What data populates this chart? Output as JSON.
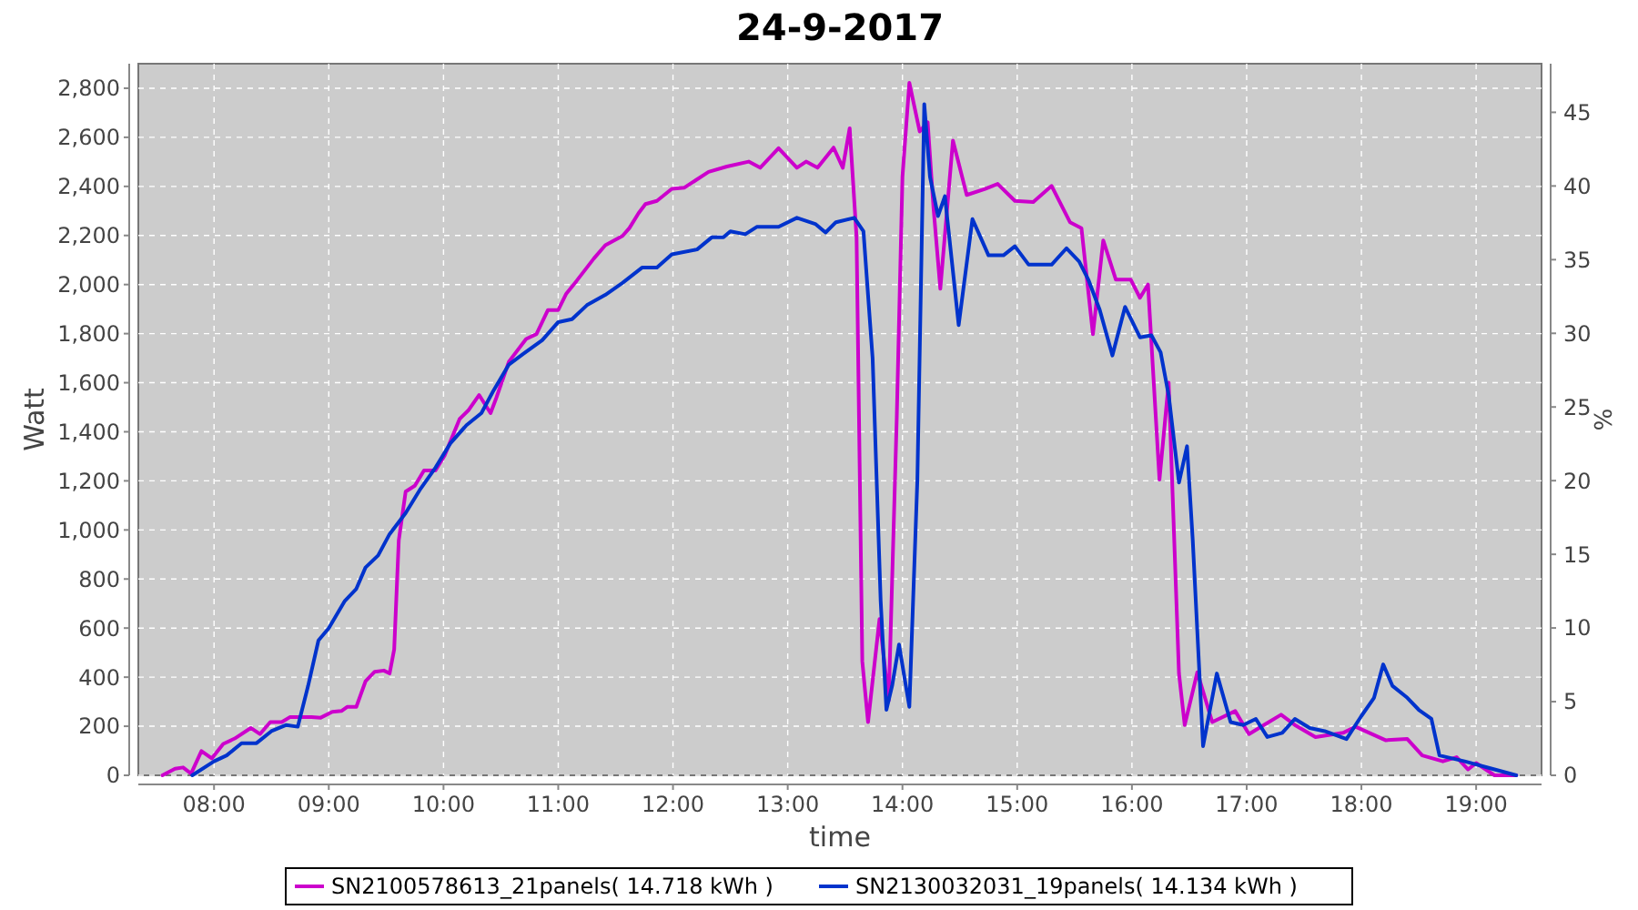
{
  "chart_data": {
    "type": "line",
    "title": "24-9-2017",
    "xlabel": "time",
    "ylabel": "Watt",
    "y2label": "%",
    "xlim": [
      7.34,
      19.57
    ],
    "xticks": [
      {
        "value": 8,
        "label": "08:00"
      },
      {
        "value": 9,
        "label": "09:00"
      },
      {
        "value": 10,
        "label": "10:00"
      },
      {
        "value": 11,
        "label": "11:00"
      },
      {
        "value": 12,
        "label": "12:00"
      },
      {
        "value": 13,
        "label": "13:00"
      },
      {
        "value": 14,
        "label": "14:00"
      },
      {
        "value": 15,
        "label": "15:00"
      },
      {
        "value": 16,
        "label": "16:00"
      },
      {
        "value": 17,
        "label": "17:00"
      },
      {
        "value": 18,
        "label": "18:00"
      },
      {
        "value": 19,
        "label": "19:00"
      }
    ],
    "ylim": [
      0,
      2900
    ],
    "yticks": [
      {
        "value": 0,
        "label": "0"
      },
      {
        "value": 200,
        "label": "200"
      },
      {
        "value": 400,
        "label": "400"
      },
      {
        "value": 600,
        "label": "600"
      },
      {
        "value": 800,
        "label": "800"
      },
      {
        "value": 1000,
        "label": "1,000"
      },
      {
        "value": 1200,
        "label": "1,200"
      },
      {
        "value": 1400,
        "label": "1,400"
      },
      {
        "value": 1600,
        "label": "1,600"
      },
      {
        "value": 1800,
        "label": "1,800"
      },
      {
        "value": 2000,
        "label": "2,000"
      },
      {
        "value": 2200,
        "label": "2,200"
      },
      {
        "value": 2400,
        "label": "2,400"
      },
      {
        "value": 2600,
        "label": "2,600"
      },
      {
        "value": 2800,
        "label": "2,800"
      }
    ],
    "y2lim": [
      0,
      48.3
    ],
    "y2ticks": [
      0,
      5,
      10,
      15,
      20,
      25,
      30,
      35,
      40,
      45
    ],
    "grid": true,
    "legend": "bottom",
    "marker": "none",
    "line_style": "solid",
    "series": [
      {
        "name": "SN2100578613_21panels( 14.718 kWh )",
        "color": "#cc00cc",
        "x": [
          7.55,
          7.66,
          7.73,
          7.8,
          7.89,
          7.98,
          8.08,
          8.18,
          8.32,
          8.4,
          8.49,
          8.59,
          8.66,
          8.85,
          8.93,
          9.03,
          9.11,
          9.16,
          9.24,
          9.32,
          9.4,
          9.48,
          9.53,
          9.57,
          9.61,
          9.67,
          9.75,
          9.83,
          9.93,
          10.01,
          10.14,
          10.22,
          10.31,
          10.41,
          10.46,
          10.57,
          10.72,
          10.81,
          10.91,
          11,
          11.07,
          11.16,
          11.31,
          11.41,
          11.56,
          11.62,
          11.7,
          11.76,
          11.86,
          11.99,
          12.1,
          12.31,
          12.47,
          12.66,
          12.76,
          12.92,
          13.08,
          13.16,
          13.26,
          13.4,
          13.48,
          13.54,
          13.6,
          13.65,
          13.7,
          13.8,
          13.88,
          13.95,
          14,
          14.06,
          14.15,
          14.22,
          14.27,
          14.33,
          14.44,
          14.56,
          14.72,
          14.83,
          14.98,
          15.14,
          15.3,
          15.46,
          15.56,
          15.66,
          15.75,
          15.86,
          15.99,
          16.07,
          16.14,
          16.24,
          16.32,
          16.41,
          16.46,
          16.57,
          16.7,
          16.9,
          17.02,
          17.15,
          17.3,
          17.42,
          17.6,
          17.84,
          17.95,
          18.21,
          18.4,
          18.53,
          18.71,
          18.83,
          18.93,
          19,
          19.16,
          19.35
        ],
        "values": [
          0,
          27,
          32,
          7,
          99,
          69,
          128,
          150,
          193,
          168,
          217,
          217,
          237,
          237,
          235,
          259,
          262,
          279,
          279,
          383,
          422,
          427,
          415,
          513,
          958,
          1156,
          1180,
          1242,
          1242,
          1304,
          1452,
          1489,
          1550,
          1476,
          1538,
          1686,
          1778,
          1798,
          1896,
          1896,
          1963,
          2015,
          2106,
          2160,
          2198,
          2230,
          2291,
          2328,
          2341,
          2390,
          2395,
          2459,
          2481,
          2501,
          2476,
          2556,
          2476,
          2501,
          2476,
          2558,
          2476,
          2637,
          2193,
          464,
          217,
          637,
          304,
          1452,
          2439,
          2822,
          2624,
          2661,
          2316,
          1983,
          2587,
          2365,
          2390,
          2410,
          2341,
          2336,
          2402,
          2254,
          2230,
          1798,
          2180,
          2020,
          2020,
          1946,
          2000,
          1205,
          1600,
          415,
          205,
          420,
          217,
          262,
          168,
          205,
          247,
          205,
          156,
          173,
          198,
          143,
          148,
          81,
          57,
          74,
          24,
          50,
          0,
          0
        ]
      },
      {
        "name": "SN2130032031_19panels( 14.134 kWh )",
        "color": "#0033cc",
        "x": [
          7.81,
          8,
          8.11,
          8.24,
          8.37,
          8.5,
          8.63,
          8.73,
          8.82,
          8.91,
          9,
          9.14,
          9.24,
          9.32,
          9.43,
          9.53,
          9.67,
          9.8,
          9.93,
          10.06,
          10.2,
          10.33,
          10.43,
          10.57,
          10.7,
          10.86,
          11,
          11.12,
          11.25,
          11.41,
          11.56,
          11.73,
          11.86,
          11.99,
          12.21,
          12.34,
          12.44,
          12.5,
          12.63,
          12.73,
          12.92,
          13.08,
          13.24,
          13.33,
          13.42,
          13.58,
          13.66,
          13.74,
          13.81,
          13.86,
          13.91,
          13.97,
          14.06,
          14.13,
          14.19,
          14.24,
          14.31,
          14.37,
          14.49,
          14.61,
          14.75,
          14.88,
          14.98,
          15.1,
          15.3,
          15.43,
          15.54,
          15.62,
          15.72,
          15.83,
          15.94,
          16.07,
          16.17,
          16.25,
          16.32,
          16.41,
          16.48,
          16.53,
          16.62,
          16.74,
          16.86,
          16.97,
          17.08,
          17.18,
          17.31,
          17.42,
          17.55,
          17.68,
          17.87,
          18,
          18.11,
          18.19,
          18.27,
          18.4,
          18.5,
          18.61,
          18.68,
          18.9,
          19.16,
          19.35
        ],
        "values": [
          0,
          57,
          81,
          131,
          131,
          180,
          205,
          198,
          365,
          550,
          600,
          711,
          760,
          847,
          896,
          983,
          1069,
          1168,
          1254,
          1353,
          1427,
          1476,
          1563,
          1674,
          1719,
          1773,
          1847,
          1859,
          1916,
          1958,
          2007,
          2069,
          2069,
          2123,
          2143,
          2193,
          2193,
          2217,
          2205,
          2235,
          2235,
          2272,
          2247,
          2212,
          2254,
          2272,
          2217,
          1699,
          711,
          267,
          365,
          533,
          279,
          1205,
          2735,
          2439,
          2279,
          2360,
          1835,
          2267,
          2119,
          2119,
          2156,
          2081,
          2081,
          2148,
          2094,
          2020,
          1896,
          1711,
          1909,
          1785,
          1793,
          1724,
          1550,
          1193,
          1341,
          958,
          119,
          415,
          217,
          205,
          230,
          156,
          173,
          230,
          193,
          180,
          148,
          242,
          316,
          452,
          365,
          316,
          267,
          230,
          81,
          57,
          24,
          0
        ]
      }
    ]
  }
}
